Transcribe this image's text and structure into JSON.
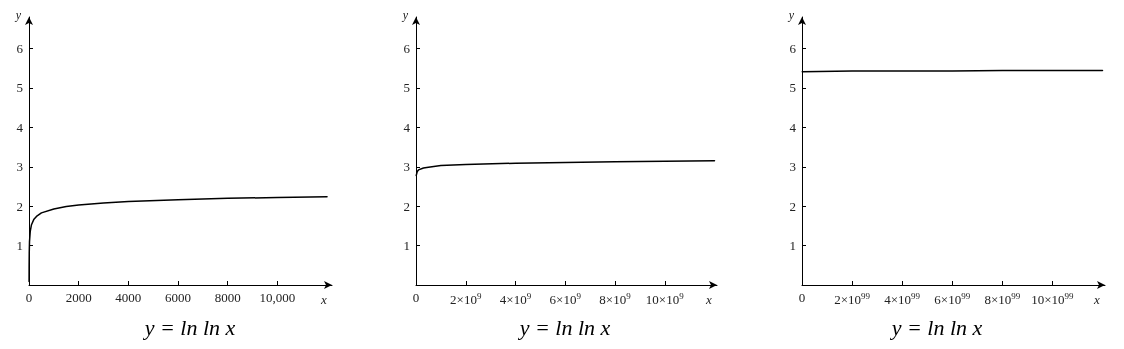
{
  "chart_data": [
    {
      "type": "line",
      "title": "y = ln ln x",
      "xlabel": "x",
      "ylabel": "y",
      "marker": "none",
      "color": "#000000",
      "x": [
        3,
        5,
        10,
        20,
        50,
        100,
        200,
        300,
        500,
        1000,
        1500,
        2000,
        3000,
        4000,
        6000,
        8000,
        10000,
        12000
      ],
      "values": [
        0.09,
        0.48,
        0.83,
        1.1,
        1.36,
        1.53,
        1.67,
        1.74,
        1.83,
        1.93,
        1.99,
        2.03,
        2.08,
        2.12,
        2.16,
        2.2,
        2.22,
        2.24
      ],
      "xlim": [
        0,
        12200
      ],
      "xticks": [
        0,
        2000,
        4000,
        6000,
        8000,
        {
          "value": 10000,
          "label": "10,000"
        }
      ],
      "ylim": [
        0,
        6.8
      ],
      "yticks": [
        1,
        2,
        3,
        4,
        5,
        6
      ]
    },
    {
      "type": "line",
      "title": "y = ln ln x",
      "xlabel": "x",
      "ylabel": "y",
      "marker": "none",
      "color": "#000000",
      "x": [
        10000000,
        50000000,
        100000000,
        300000000,
        500000000,
        1000000000,
        2000000000,
        4000000000,
        6000000000,
        8000000000,
        10000000000,
        12000000000
      ],
      "values": [
        2.78,
        2.88,
        2.92,
        2.97,
        2.99,
        3.03,
        3.06,
        3.09,
        3.11,
        3.13,
        3.14,
        3.15
      ],
      "xlim": [
        0,
        12100000000
      ],
      "xticks": [
        0,
        {
          "value": 2000000000,
          "label": "2×10$^{9}$"
        },
        {
          "value": 4000000000,
          "label": "4×10$^{9}$"
        },
        {
          "value": 6000000000,
          "label": "6×10$^{9}$"
        },
        {
          "value": 8000000000,
          "label": "8×10$^{9}$"
        },
        {
          "value": 10000000000,
          "label": "10×10$^{9}$"
        }
      ],
      "ylim": [
        0,
        6.8
      ],
      "yticks": [
        1,
        2,
        3,
        4,
        5,
        6
      ]
    },
    {
      "type": "line",
      "title": "y = ln ln x",
      "xlabel": "x",
      "ylabel": "y",
      "marker": "none",
      "color": "#000000",
      "x": [
        1e+97,
        2e+99,
        4e+99,
        6e+99,
        8e+99,
        1e+100,
        1.2e+100
      ],
      "values": [
        5.41,
        5.43,
        5.43,
        5.43,
        5.44,
        5.44,
        5.44
      ],
      "xlim": [
        0,
        1.21e+100
      ],
      "xticks": [
        0,
        {
          "value": 2e+99,
          "label": "2×10$^{99}$"
        },
        {
          "value": 4e+99,
          "label": "4×10$^{99}$"
        },
        {
          "value": 6e+99,
          "label": "6×10$^{99}$"
        },
        {
          "value": 8e+99,
          "label": "8×10$^{99}$"
        },
        {
          "value": 1e+100,
          "label": "10×10$^{99}$"
        }
      ],
      "ylim": [
        0,
        6.8
      ],
      "yticks": [
        1,
        2,
        3,
        4,
        5,
        6
      ]
    }
  ]
}
